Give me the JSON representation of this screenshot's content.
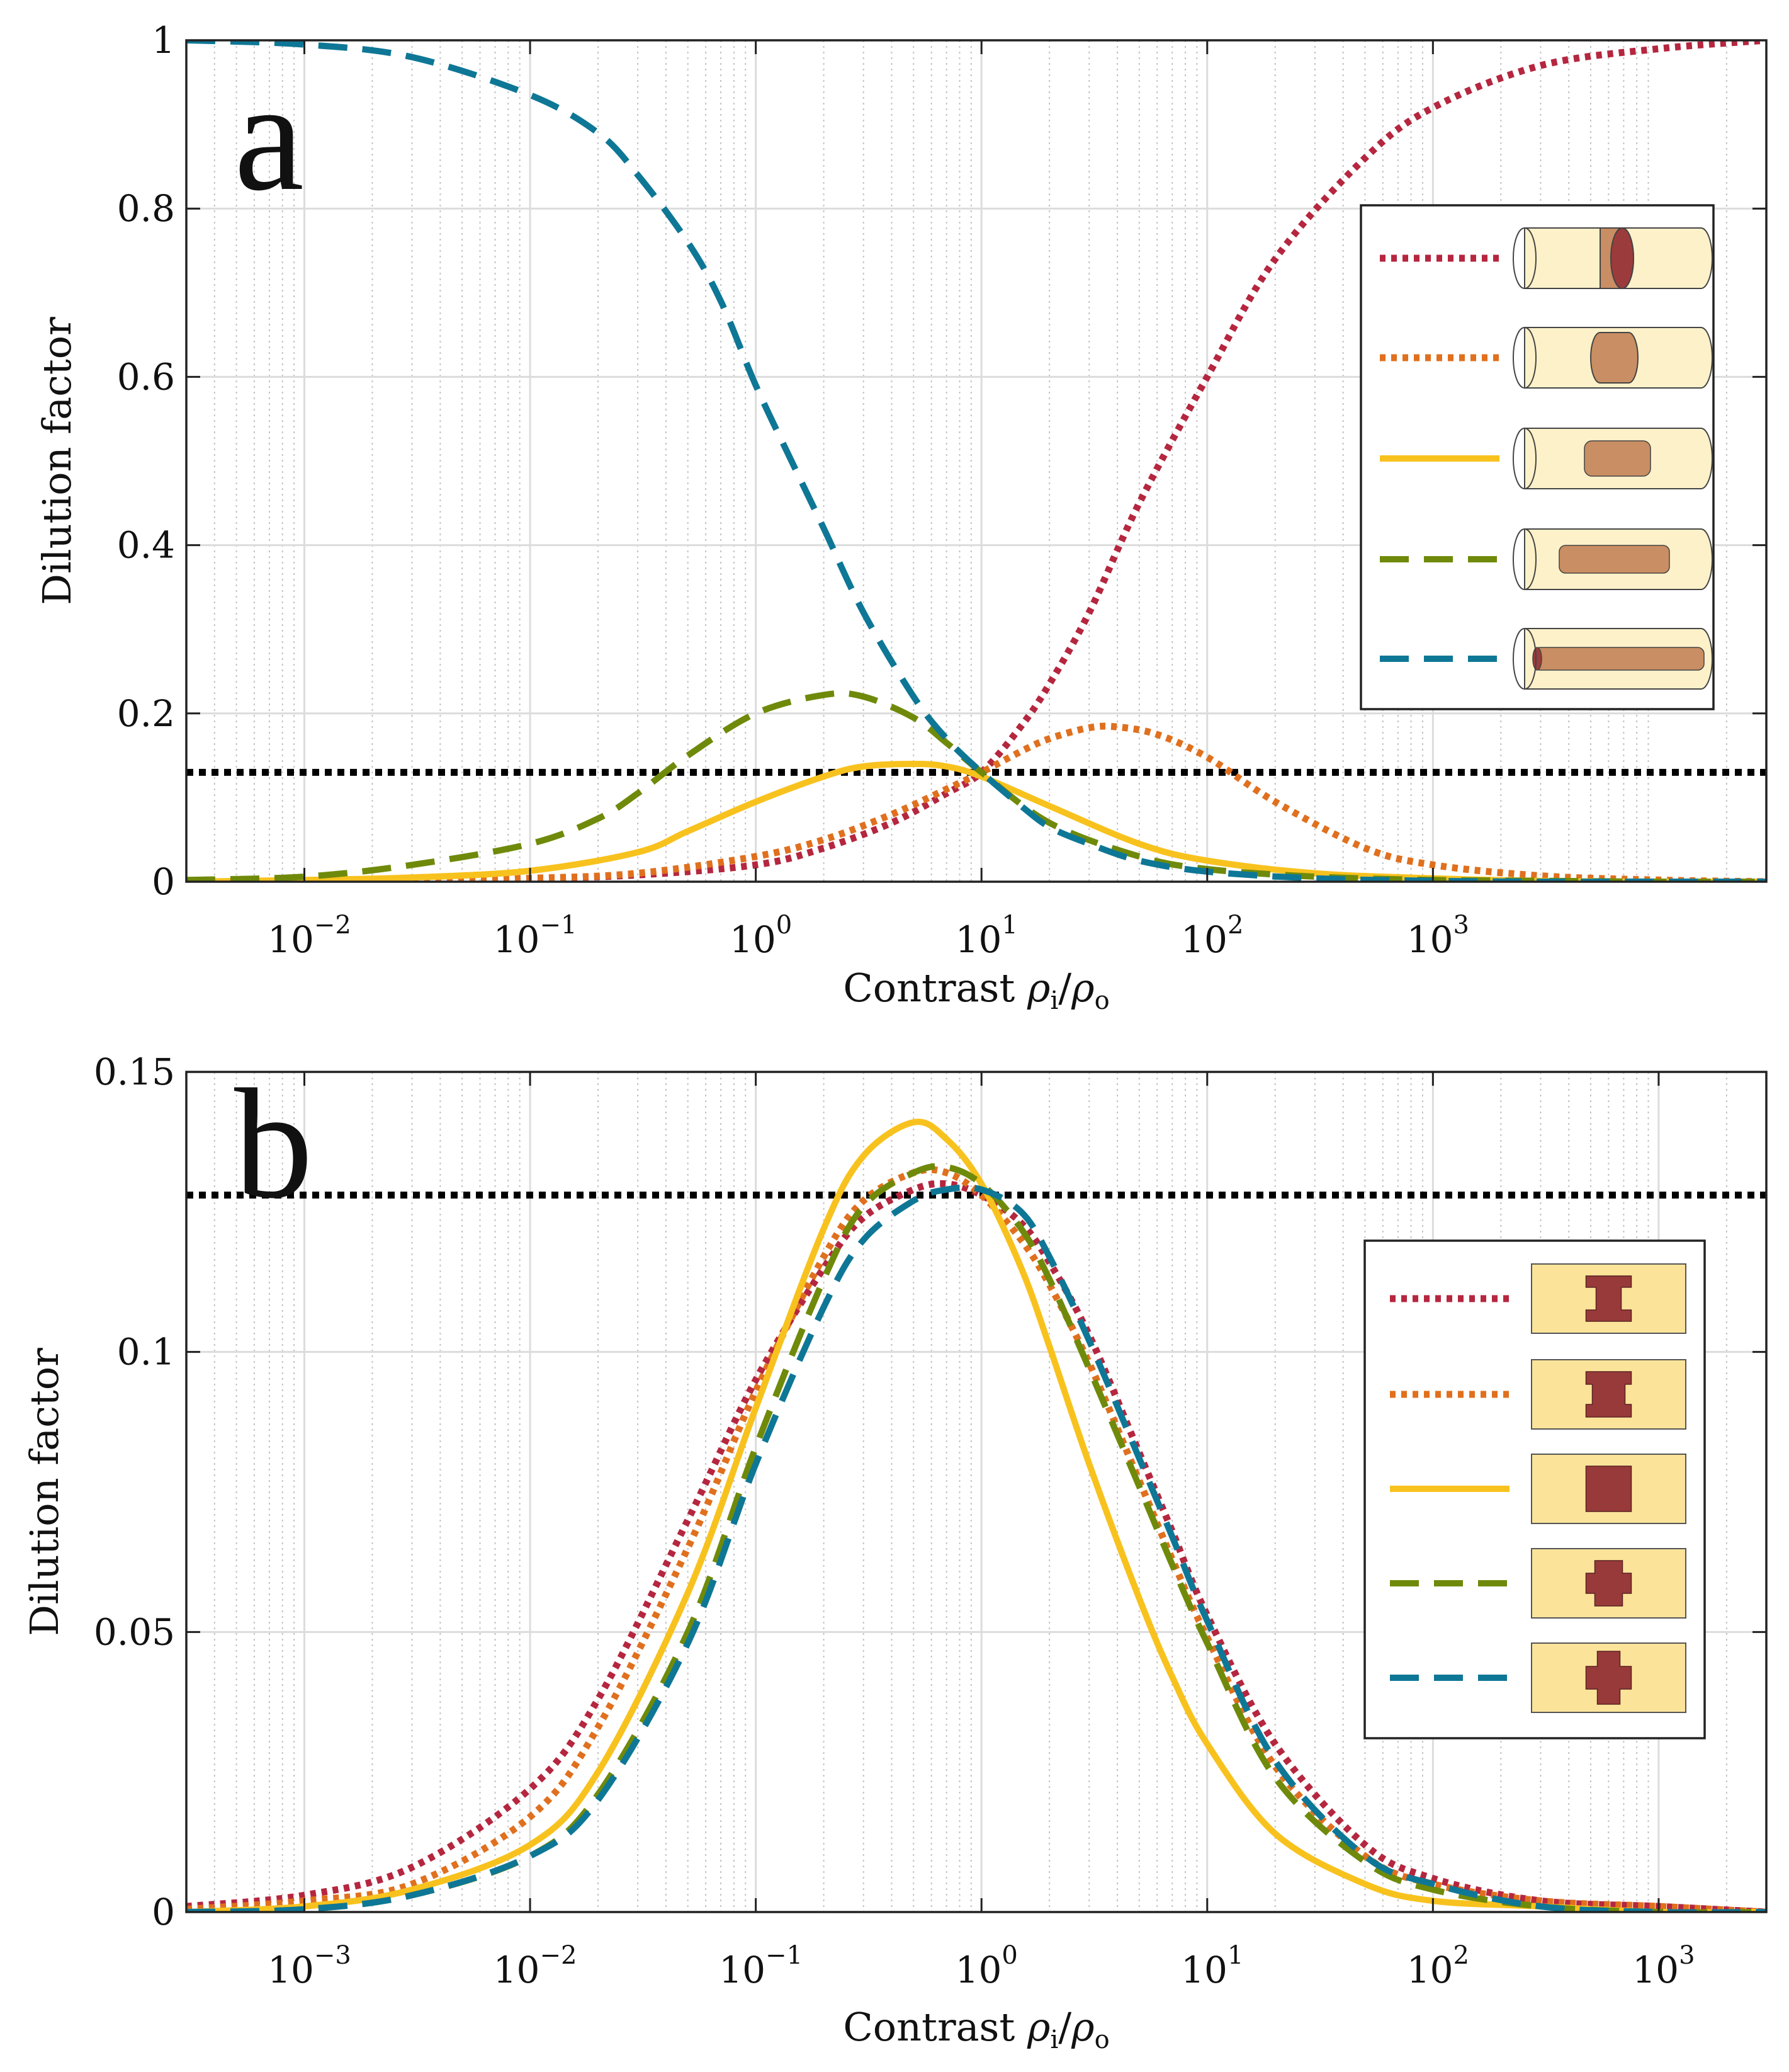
{
  "figure": {
    "panel_labels": [
      "a",
      "b"
    ]
  },
  "colors": {
    "crimson": "#B5263F",
    "orange": "#E0701E",
    "yellow": "#F8C21E",
    "olive": "#6F8A0A",
    "teal": "#0E7796",
    "reference": "#000000",
    "cyl_fill": "#FDF1C9",
    "core_fill": "#C98E63",
    "core_dark": "#9C3B3C",
    "rect_fill": "#FBE49A",
    "shape_fill": "#983A3A"
  },
  "chart_data": [
    {
      "type": "line",
      "panel": "a",
      "xscale": "log",
      "xlim": [
        0.003,
        30000
      ],
      "ylim": [
        0,
        1
      ],
      "xlabel": "Contrast ρi/ρo",
      "ylabel": "Dilution factor",
      "xticks": [
        {
          "value": 0.01,
          "base": "10",
          "exp": "−2"
        },
        {
          "value": 0.1,
          "base": "10",
          "exp": "−1"
        },
        {
          "value": 1,
          "base": "10",
          "exp": "0"
        },
        {
          "value": 10,
          "base": "10",
          "exp": "1"
        },
        {
          "value": 100,
          "base": "10",
          "exp": "2"
        },
        {
          "value": 1000,
          "base": "10",
          "exp": "3"
        }
      ],
      "yticks": [
        {
          "value": 0,
          "label": "0"
        },
        {
          "value": 0.2,
          "label": "0.2"
        },
        {
          "value": 0.4,
          "label": "0.4"
        },
        {
          "value": 0.6,
          "label": "0.6"
        },
        {
          "value": 0.8,
          "label": "0.8"
        },
        {
          "value": 1,
          "label": "1"
        }
      ],
      "grid": true,
      "reference_line": {
        "y": 0.13
      },
      "legend": {
        "placement": "right",
        "icon": "cylinder"
      },
      "series": [
        {
          "color": "crimson",
          "style": "dotted",
          "icon_core": "disk",
          "x": [
            0.003,
            0.01,
            0.03,
            0.1,
            0.3,
            1,
            2,
            4,
            7,
            10,
            15,
            20,
            30,
            50,
            100,
            200,
            500,
            1000,
            3000,
            10000,
            30000
          ],
          "y": [
            0,
            0,
            0.001,
            0.004,
            0.008,
            0.02,
            0.04,
            0.07,
            0.105,
            0.13,
            0.185,
            0.235,
            0.32,
            0.45,
            0.6,
            0.74,
            0.86,
            0.92,
            0.97,
            0.99,
            1.0
          ]
        },
        {
          "color": "orange",
          "style": "dotted",
          "icon_core": "short",
          "x": [
            0.003,
            0.01,
            0.03,
            0.1,
            0.3,
            1,
            2,
            4,
            7,
            10,
            15,
            20,
            30,
            40,
            60,
            100,
            200,
            500,
            1000,
            3000,
            10000,
            30000
          ],
          "y": [
            0,
            0,
            0.001,
            0.004,
            0.01,
            0.03,
            0.05,
            0.08,
            0.11,
            0.13,
            0.155,
            0.17,
            0.183,
            0.184,
            0.175,
            0.148,
            0.095,
            0.04,
            0.02,
            0.007,
            0.002,
            0
          ]
        },
        {
          "color": "yellow",
          "style": "solid",
          "icon_core": "medium",
          "x": [
            0.003,
            0.01,
            0.03,
            0.1,
            0.3,
            0.5,
            1,
            2,
            3,
            5,
            7,
            10,
            20,
            50,
            100,
            300,
            1000,
            3000,
            10000,
            30000
          ],
          "y": [
            0,
            0.002,
            0.005,
            0.013,
            0.035,
            0.06,
            0.095,
            0.125,
            0.137,
            0.14,
            0.137,
            0.125,
            0.09,
            0.045,
            0.025,
            0.01,
            0.004,
            0.001,
            0,
            0
          ]
        },
        {
          "color": "olive",
          "style": "dashed",
          "icon_core": "long",
          "x": [
            0.003,
            0.01,
            0.03,
            0.1,
            0.2,
            0.3,
            0.5,
            1,
            2,
            3,
            5,
            7,
            10,
            20,
            50,
            100,
            300,
            1000,
            3000,
            10000,
            30000
          ],
          "y": [
            0.002,
            0.006,
            0.02,
            0.045,
            0.075,
            0.105,
            0.15,
            0.2,
            0.222,
            0.22,
            0.195,
            0.165,
            0.13,
            0.07,
            0.03,
            0.015,
            0.006,
            0.002,
            0.001,
            0,
            0
          ]
        },
        {
          "color": "teal",
          "style": "dashed",
          "icon_core": "full",
          "x": [
            0.003,
            0.01,
            0.03,
            0.1,
            0.2,
            0.3,
            0.5,
            0.7,
            1,
            1.5,
            2,
            3,
            5,
            7,
            10,
            15,
            20,
            30,
            50,
            100,
            300,
            1000,
            3000,
            10000,
            30000
          ],
          "y": [
            1.0,
            0.995,
            0.98,
            0.935,
            0.89,
            0.84,
            0.76,
            0.69,
            0.59,
            0.49,
            0.42,
            0.32,
            0.22,
            0.17,
            0.13,
            0.09,
            0.065,
            0.045,
            0.025,
            0.012,
            0.004,
            0.001,
            0,
            0,
            0
          ]
        }
      ]
    },
    {
      "type": "line",
      "panel": "b",
      "xscale": "log",
      "xlim": [
        0.0003,
        3000
      ],
      "ylim": [
        0,
        0.15
      ],
      "xlabel": "Contrast ρi/ρo",
      "ylabel": "Dilution factor",
      "xticks": [
        {
          "value": 0.001,
          "base": "10",
          "exp": "−3"
        },
        {
          "value": 0.01,
          "base": "10",
          "exp": "−2"
        },
        {
          "value": 0.1,
          "base": "10",
          "exp": "−1"
        },
        {
          "value": 1,
          "base": "10",
          "exp": "0"
        },
        {
          "value": 10,
          "base": "10",
          "exp": "1"
        },
        {
          "value": 100,
          "base": "10",
          "exp": "2"
        },
        {
          "value": 1000,
          "base": "10",
          "exp": "3"
        }
      ],
      "yticks": [
        {
          "value": 0,
          "label": "0"
        },
        {
          "value": 0.05,
          "label": "0.05"
        },
        {
          "value": 0.1,
          "label": "0.1"
        },
        {
          "value": 0.15,
          "label": "0.15"
        }
      ],
      "grid": true,
      "reference_line": {
        "y": 0.128
      },
      "legend": {
        "placement": "right",
        "icon": "cross-section"
      },
      "series": [
        {
          "color": "crimson",
          "style": "dotted",
          "icon_shape": "notch-in-deep",
          "x": [
            0.0003,
            0.001,
            0.003,
            0.01,
            0.02,
            0.05,
            0.1,
            0.2,
            0.3,
            0.5,
            0.7,
            1,
            1.5,
            2,
            3,
            5,
            7,
            10,
            20,
            50,
            100,
            300,
            1000,
            3000
          ],
          "y": [
            0.001,
            0.003,
            0.008,
            0.022,
            0.038,
            0.07,
            0.095,
            0.115,
            0.124,
            0.129,
            0.13,
            0.128,
            0.123,
            0.116,
            0.103,
            0.082,
            0.068,
            0.053,
            0.03,
            0.012,
            0.006,
            0.002,
            0.001,
            0
          ]
        },
        {
          "color": "orange",
          "style": "dotted",
          "icon_shape": "notch-in",
          "x": [
            0.0003,
            0.001,
            0.003,
            0.01,
            0.02,
            0.05,
            0.1,
            0.2,
            0.3,
            0.5,
            0.7,
            1,
            1.5,
            2,
            3,
            5,
            7,
            10,
            20,
            50,
            100,
            300,
            1000,
            3000
          ],
          "y": [
            0.0005,
            0.002,
            0.005,
            0.017,
            0.033,
            0.065,
            0.093,
            0.117,
            0.127,
            0.132,
            0.132,
            0.128,
            0.12,
            0.112,
            0.098,
            0.077,
            0.063,
            0.049,
            0.026,
            0.01,
            0.005,
            0.002,
            0.001,
            0
          ]
        },
        {
          "color": "yellow",
          "style": "solid",
          "icon_shape": "rectangle",
          "x": [
            0.0003,
            0.001,
            0.003,
            0.01,
            0.02,
            0.05,
            0.1,
            0.2,
            0.3,
            0.5,
            0.7,
            1,
            1.5,
            2,
            3,
            5,
            7,
            10,
            20,
            50,
            100,
            300,
            1000,
            3000
          ],
          "y": [
            0,
            0.001,
            0.004,
            0.012,
            0.025,
            0.057,
            0.09,
            0.122,
            0.135,
            0.141,
            0.138,
            0.13,
            0.115,
            0.101,
            0.08,
            0.056,
            0.042,
            0.03,
            0.014,
            0.005,
            0.002,
            0.001,
            0,
            0
          ]
        },
        {
          "color": "olive",
          "style": "dashed",
          "icon_shape": "bulge-out",
          "x": [
            0.0003,
            0.001,
            0.003,
            0.01,
            0.02,
            0.05,
            0.1,
            0.2,
            0.3,
            0.5,
            0.7,
            1,
            1.5,
            2,
            3,
            5,
            7,
            10,
            20,
            50,
            100,
            300,
            1000,
            3000
          ],
          "y": [
            0,
            0.0005,
            0.003,
            0.01,
            0.021,
            0.05,
            0.083,
            0.113,
            0.126,
            0.132,
            0.133,
            0.13,
            0.122,
            0.113,
            0.097,
            0.076,
            0.062,
            0.048,
            0.024,
            0.009,
            0.004,
            0.001,
            0,
            0
          ]
        },
        {
          "color": "teal",
          "style": "dashed",
          "icon_shape": "bulge-out-deep",
          "x": [
            0.0003,
            0.001,
            0.003,
            0.01,
            0.02,
            0.05,
            0.1,
            0.2,
            0.3,
            0.5,
            0.7,
            1,
            1.5,
            2,
            3,
            5,
            7,
            10,
            20,
            50,
            100,
            300,
            1000,
            3000
          ],
          "y": [
            0,
            0.0005,
            0.003,
            0.01,
            0.02,
            0.048,
            0.08,
            0.108,
            0.12,
            0.127,
            0.129,
            0.129,
            0.125,
            0.117,
            0.102,
            0.081,
            0.067,
            0.052,
            0.027,
            0.01,
            0.005,
            0.001,
            0,
            0
          ]
        }
      ]
    }
  ]
}
